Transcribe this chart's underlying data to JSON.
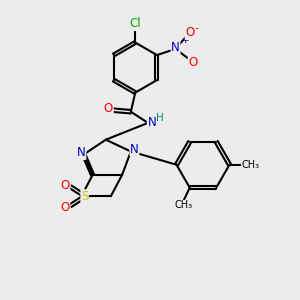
{
  "bg_color": "#ececec",
  "atom_colors": {
    "O": "#ff0000",
    "N": "#0000cc",
    "S": "#cccc00",
    "Cl": "#00aa00",
    "H": "#008888",
    "C": "black"
  },
  "bond_lw": 1.5,
  "font_size": 8.5
}
